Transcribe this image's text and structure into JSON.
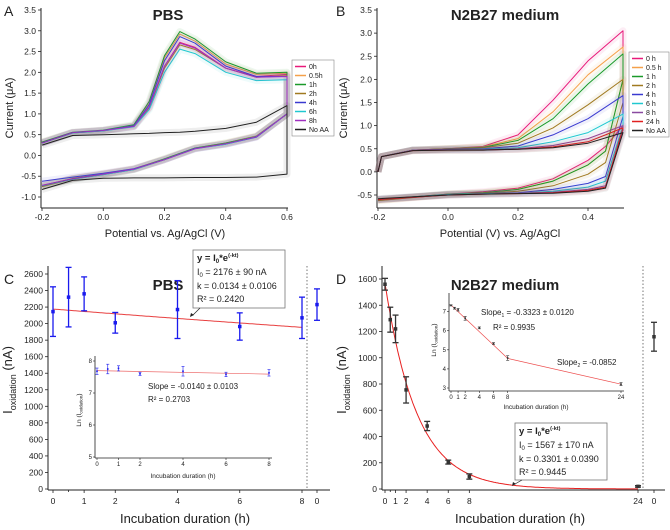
{
  "chart_data": [
    {
      "panel": "A",
      "type": "line",
      "title": "PBS",
      "xlabel": "Potential vs. Ag/AgCl (V)",
      "ylabel": "Current (μA)",
      "xlim": [
        -0.2,
        0.6
      ],
      "ylim": [
        -1.0,
        3.5
      ],
      "xticks": [
        "-0.2",
        "0.0",
        "0.2",
        "0.4",
        "0.6"
      ],
      "xtick_values": [
        -0.2,
        0.0,
        0.2,
        0.4,
        0.6
      ],
      "yticks": [
        "-1.0",
        "-0.5",
        "0.0",
        "0.5",
        "1.0",
        "1.5",
        "2.0",
        "2.5",
        "3.0",
        "3.5"
      ],
      "ytick_values": [
        -1.0,
        -0.5,
        0.0,
        0.5,
        1.0,
        1.5,
        2.0,
        2.5,
        3.0,
        3.5
      ],
      "legend": "right",
      "forward_x": [
        -0.2,
        -0.1,
        0.0,
        0.1,
        0.15,
        0.2,
        0.25,
        0.3,
        0.4,
        0.5,
        0.6
      ],
      "reverse_x": [
        0.6,
        0.5,
        0.4,
        0.3,
        0.2,
        0.1,
        0.0,
        -0.1,
        -0.2
      ],
      "series": [
        {
          "name": "0h",
          "color": "#e8197a",
          "forward": [
            0.3,
            0.55,
            0.6,
            0.7,
            1.15,
            2.15,
            2.72,
            2.6,
            2.1,
            1.9,
            1.95
          ],
          "reverse": [
            1.0,
            0.45,
            0.28,
            0.17,
            -0.1,
            -0.33,
            -0.45,
            -0.56,
            -0.72
          ]
        },
        {
          "name": "0.5h",
          "color": "#f5a04a",
          "forward": [
            0.32,
            0.55,
            0.6,
            0.72,
            1.25,
            2.35,
            2.92,
            2.75,
            2.2,
            1.95,
            1.98
          ],
          "reverse": [
            1.0,
            0.47,
            0.3,
            0.18,
            -0.08,
            -0.32,
            -0.44,
            -0.55,
            -0.74
          ]
        },
        {
          "name": "1h",
          "color": "#1a9a2a",
          "forward": [
            0.32,
            0.56,
            0.61,
            0.74,
            1.3,
            2.4,
            2.98,
            2.8,
            2.25,
            1.98,
            2.0
          ],
          "reverse": [
            1.0,
            0.46,
            0.3,
            0.18,
            -0.08,
            -0.33,
            -0.45,
            -0.56,
            -0.74
          ]
        },
        {
          "name": "2h",
          "color": "#a07a20",
          "forward": [
            0.3,
            0.54,
            0.59,
            0.7,
            1.15,
            2.1,
            2.66,
            2.55,
            2.1,
            1.88,
            1.92
          ],
          "reverse": [
            1.0,
            0.45,
            0.28,
            0.17,
            -0.1,
            -0.34,
            -0.46,
            -0.57,
            -0.75
          ]
        },
        {
          "name": "4h",
          "color": "#3a3ad0",
          "forward": [
            0.3,
            0.55,
            0.6,
            0.71,
            1.22,
            2.28,
            2.86,
            2.7,
            2.15,
            1.9,
            1.9
          ],
          "reverse": [
            1.0,
            0.44,
            0.27,
            0.17,
            -0.1,
            -0.32,
            -0.43,
            -0.52,
            -0.62
          ]
        },
        {
          "name": "6h",
          "color": "#20c8d0",
          "forward": [
            0.3,
            0.54,
            0.59,
            0.69,
            1.1,
            2.0,
            2.56,
            2.45,
            2.0,
            1.8,
            1.82
          ],
          "reverse": [
            1.0,
            0.45,
            0.27,
            0.16,
            -0.1,
            -0.34,
            -0.46,
            -0.57,
            -0.73
          ]
        },
        {
          "name": "8h",
          "color": "#a030c0",
          "forward": [
            0.3,
            0.55,
            0.6,
            0.7,
            1.17,
            2.15,
            2.7,
            2.58,
            2.1,
            1.88,
            1.9
          ],
          "reverse": [
            1.0,
            0.45,
            0.28,
            0.16,
            -0.1,
            -0.33,
            -0.45,
            -0.56,
            -0.72
          ]
        },
        {
          "name": "No AA",
          "color": "#222222",
          "forward": [
            0.25,
            0.48,
            0.5,
            0.52,
            0.53,
            0.55,
            0.56,
            0.58,
            0.65,
            0.8,
            1.2
          ],
          "reverse": [
            -0.45,
            -0.52,
            -0.53,
            -0.53,
            -0.54,
            -0.54,
            -0.55,
            -0.6,
            -0.82
          ]
        }
      ]
    },
    {
      "panel": "B",
      "type": "line",
      "title": "N2B27 medium",
      "xlabel": "Potential (V) vs. Ag/AgCl",
      "ylabel": "Current (μA)",
      "xlim": [
        -0.2,
        0.5
      ],
      "ylim": [
        -0.5,
        3.5
      ],
      "xticks": [
        "-0.2",
        "0.0",
        "0.2",
        "0.4"
      ],
      "xtick_values": [
        -0.2,
        0.0,
        0.2,
        0.4
      ],
      "yticks": [
        "-0.5",
        "0.0",
        "0.5",
        "1.0",
        "1.5",
        "2.0",
        "2.5",
        "3.0",
        "3.5"
      ],
      "ytick_values": [
        -0.5,
        0.0,
        0.5,
        1.0,
        1.5,
        2.0,
        2.5,
        3.0,
        3.5
      ],
      "legend": "right",
      "forward_x": [
        -0.2,
        -0.19,
        -0.1,
        0.0,
        0.1,
        0.2,
        0.3,
        0.4,
        0.5
      ],
      "reverse_x": [
        0.5,
        0.45,
        0.4,
        0.3,
        0.2,
        0.1,
        0.0,
        -0.2
      ],
      "series": [
        {
          "name": "0 h",
          "color": "#e8197a",
          "forward": [
            0.0,
            0.33,
            0.47,
            0.5,
            0.55,
            0.8,
            1.55,
            2.4,
            3.05
          ],
          "reverse": [
            1.0,
            0.55,
            0.25,
            -0.15,
            -0.35,
            -0.43,
            -0.48,
            -0.6
          ]
        },
        {
          "name": "0.5 h",
          "color": "#f5a04a",
          "forward": [
            0.0,
            0.33,
            0.47,
            0.5,
            0.54,
            0.72,
            1.3,
            2.1,
            2.7
          ],
          "reverse": [
            2.0,
            0.45,
            0.15,
            -0.2,
            -0.38,
            -0.45,
            -0.48,
            -0.62
          ]
        },
        {
          "name": "1 h",
          "color": "#1a9a2a",
          "forward": [
            0.0,
            0.33,
            0.47,
            0.5,
            0.53,
            0.68,
            1.15,
            1.9,
            2.55
          ],
          "reverse": [
            2.0,
            0.45,
            0.15,
            -0.2,
            -0.38,
            -0.45,
            -0.48,
            -0.6
          ]
        },
        {
          "name": "2 h",
          "color": "#a07a20",
          "forward": [
            0.0,
            0.33,
            0.47,
            0.5,
            0.52,
            0.62,
            0.95,
            1.45,
            2.0
          ],
          "reverse": [
            1.5,
            0.2,
            -0.05,
            -0.3,
            -0.42,
            -0.46,
            -0.49,
            -0.62
          ]
        },
        {
          "name": "4 h",
          "color": "#3a3ad0",
          "forward": [
            0.0,
            0.33,
            0.47,
            0.49,
            0.5,
            0.56,
            0.8,
            1.15,
            1.65
          ],
          "reverse": [
            1.2,
            -0.1,
            -0.25,
            -0.38,
            -0.45,
            -0.47,
            -0.49,
            -0.6
          ]
        },
        {
          "name": "6 h",
          "color": "#20c8d0",
          "forward": [
            0.0,
            0.33,
            0.47,
            0.48,
            0.49,
            0.52,
            0.65,
            0.85,
            1.25
          ],
          "reverse": [
            1.0,
            -0.2,
            -0.33,
            -0.42,
            -0.46,
            -0.47,
            -0.49,
            -0.6
          ]
        },
        {
          "name": "8 h",
          "color": "#8a4aa0",
          "forward": [
            0.0,
            0.33,
            0.47,
            0.48,
            0.48,
            0.5,
            0.57,
            0.72,
            1.0
          ],
          "reverse": [
            0.9,
            -0.3,
            -0.38,
            -0.44,
            -0.46,
            -0.48,
            -0.5,
            -0.6
          ]
        },
        {
          "name": "24 h",
          "color": "#e02020",
          "forward": [
            0.0,
            0.33,
            0.46,
            0.47,
            0.47,
            0.49,
            0.54,
            0.65,
            0.95
          ],
          "reverse": [
            0.95,
            -0.33,
            -0.4,
            -0.45,
            -0.47,
            -0.48,
            -0.5,
            -0.6
          ]
        },
        {
          "name": "No AA",
          "color": "#222222",
          "forward": [
            0.0,
            0.33,
            0.46,
            0.47,
            0.47,
            0.49,
            0.52,
            0.62,
            0.85
          ],
          "reverse": [
            0.85,
            -0.35,
            -0.42,
            -0.46,
            -0.47,
            -0.48,
            -0.5,
            -0.58
          ]
        }
      ]
    },
    {
      "panel": "C",
      "type": "scatter",
      "title": "PBS",
      "xlabel": "Incubation duration (h)",
      "ylabel": {
        "main": "I",
        "sub": "oxidation",
        "unit": " (nA)"
      },
      "xlim": [
        0,
        8
      ],
      "ylim": [
        0,
        2600
      ],
      "xticks": [
        "0",
        "1",
        "2",
        "4",
        "6",
        "8"
      ],
      "xtick_values": [
        0,
        1,
        2,
        4,
        6,
        8
      ],
      "control_tick": "0",
      "yticks": [
        "0",
        "200",
        "400",
        "600",
        "800",
        "1000",
        "1200",
        "1400",
        "1600",
        "1800",
        "2000",
        "2200",
        "2400",
        "2600"
      ],
      "ytick_values": [
        0,
        200,
        400,
        600,
        800,
        1000,
        1200,
        1400,
        1600,
        1800,
        2000,
        2200,
        2400,
        2600
      ],
      "marker_color": "#1a1aee",
      "fit_color": "#e84040",
      "x": [
        0,
        0.5,
        1,
        2,
        4,
        6,
        8
      ],
      "y": [
        2145,
        2320,
        2360,
        2010,
        2170,
        1965,
        2070
      ],
      "error": [
        300,
        360,
        205,
        125,
        350,
        165,
        250
      ],
      "control": {
        "y": 2230,
        "error": 190
      },
      "fit": {
        "I0": 2176,
        "k": 0.0134
      },
      "equation": {
        "lhs": "y = I",
        "sub": "0",
        "mid": "*e",
        "sup": "(-kt)"
      },
      "annotations": {
        "i0_label": "I",
        "i0_sub": "0",
        "i0_value": " = 2176 ± 90 nA",
        "k": "k = 0.0134 ± 0.0106",
        "r2": "R² = 0.2420"
      },
      "inset": {
        "xlabel": "Incubation duration (h)",
        "ylabel": {
          "main": "Ln (I",
          "sub": "oxidation",
          "end": ")"
        },
        "xlim": [
          0,
          8
        ],
        "ylim": [
          5,
          8
        ],
        "xticks": [
          "0",
          "1",
          "2",
          "4",
          "6",
          "8"
        ],
        "xtick_values": [
          0,
          1,
          2,
          4,
          6,
          8
        ],
        "yticks": [
          "5",
          "6",
          "7",
          "8"
        ],
        "ytick_values": [
          5,
          6,
          7,
          8
        ],
        "x": [
          0,
          0.5,
          1,
          2,
          4,
          6,
          8
        ],
        "y": [
          7.68,
          7.75,
          7.77,
          7.6,
          7.68,
          7.58,
          7.63
        ],
        "error": [
          0.1,
          0.15,
          0.08,
          0.05,
          0.15,
          0.07,
          0.1
        ],
        "fit_lines": [
          [
            [
              0,
              7.7
            ],
            [
              8,
              7.59
            ]
          ]
        ],
        "slope": "Slope = -0.0140 ± 0.0103",
        "r2": "R² = 0.2703"
      }
    },
    {
      "panel": "D",
      "type": "scatter",
      "title": "N2B27 medium",
      "xlabel": "Incubation duration (h)",
      "ylabel": {
        "main": "I",
        "sub": "oxidation",
        "unit": " (nA)"
      },
      "xlim": [
        0,
        24
      ],
      "ylim": [
        0,
        1600
      ],
      "xticks": [
        "0",
        "1",
        "2",
        "4",
        "6",
        "8",
        "24"
      ],
      "xtick_values": [
        0,
        1,
        2,
        4,
        6,
        8,
        24
      ],
      "control_tick": "0",
      "yticks": [
        "0",
        "200",
        "400",
        "600",
        "800",
        "1000",
        "1200",
        "1400",
        "1600"
      ],
      "ytick_values": [
        0,
        200,
        400,
        600,
        800,
        1000,
        1200,
        1400,
        1600
      ],
      "marker_color": "#333333",
      "fit_color": "#e82020",
      "x": [
        0,
        0.5,
        1,
        2,
        4,
        6,
        8,
        24
      ],
      "y": [
        1560,
        1290,
        1220,
        755,
        480,
        205,
        95,
        20
      ],
      "error": [
        45,
        95,
        105,
        100,
        35,
        15,
        20,
        6
      ],
      "control": {
        "y": 1160,
        "error": 110
      },
      "fit": {
        "I0": 1567,
        "k": 0.3301
      },
      "equation": {
        "lhs": "y = I",
        "sub": "0",
        "mid": "*e",
        "sup": "(-kt)"
      },
      "annotations": {
        "i0_label": "I",
        "i0_sub": "0",
        "i0_value": " = 1567 ± 170 nA",
        "k": "k = 0.3301 ± 0.0390",
        "r2": "R² = 0.9445"
      },
      "inset": {
        "xlabel": "Incubation duration (h)",
        "ylabel": {
          "main": "Ln (I",
          "sub": "oxidation",
          "end": ")"
        },
        "xlim": [
          0,
          24
        ],
        "ylim": [
          3,
          7.4
        ],
        "xticks": [
          "0",
          "1",
          "2",
          "4",
          "6",
          "8",
          "24"
        ],
        "xtick_values": [
          0,
          1,
          2,
          4,
          6,
          8,
          24
        ],
        "yticks": [
          "3",
          "4",
          "5",
          "6",
          "7"
        ],
        "ytick_values": [
          3,
          4,
          5,
          6,
          7
        ],
        "x": [
          0,
          0.5,
          1,
          2,
          4,
          6,
          8,
          24
        ],
        "y": [
          7.33,
          7.18,
          7.1,
          6.65,
          6.15,
          5.33,
          4.57,
          3.2
        ],
        "error": [
          0.03,
          0.05,
          0.07,
          0.1,
          0.05,
          0.05,
          0.12,
          0.08
        ],
        "fit_lines": [
          [
            [
              0,
              7.35
            ],
            [
              8,
              4.55
            ]
          ],
          [
            [
              8,
              4.55
            ],
            [
              24,
              3.2
            ]
          ]
        ],
        "slope1": {
          "main": "Slope",
          "sub": "1",
          "value": " = -0.3323 ± 0.0120"
        },
        "r2": "R² = 0.9935",
        "slope2": {
          "main": "Slope",
          "sub": "2",
          "value": " = -0.0852"
        }
      }
    }
  ]
}
